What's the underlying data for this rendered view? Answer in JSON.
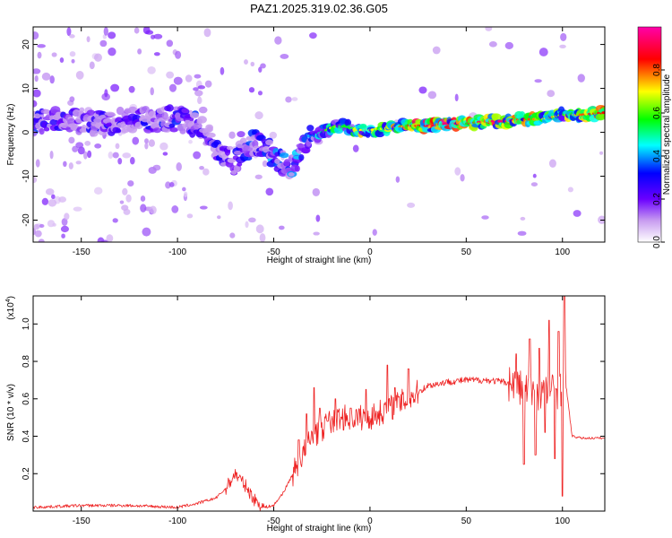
{
  "figure_title": "PAZ1.2025.319.02.36.G05",
  "chart_data": [
    {
      "type": "heatmap",
      "name": "spectrogram",
      "xlabel": "Height of straight line (km)",
      "ylabel": "Frequency (Hz)",
      "xlim": [
        -175,
        122
      ],
      "ylim": [
        -25,
        24
      ],
      "xticks": [
        -150,
        -100,
        -50,
        0,
        50,
        100
      ],
      "xtick_labels": [
        "-150",
        "-100",
        "-50",
        "0",
        "50",
        "100"
      ],
      "yticks": [
        -20,
        -10,
        0,
        10,
        20
      ],
      "ytick_labels": [
        "-20",
        "-10",
        "0",
        "10",
        "20"
      ],
      "colorbar": {
        "label": "Normalized spectral amplitude",
        "range": [
          0,
          1
        ],
        "ticks": [
          0.0,
          0.2,
          0.4,
          0.6,
          0.8
        ],
        "tick_labels": [
          "0.0",
          "0.2",
          "0.4",
          "0.6",
          "0.8"
        ],
        "colors": [
          "#ffffff",
          "#8a2be2",
          "#0000ff",
          "#00ffff",
          "#00ff00",
          "#ffff00",
          "#ff0000",
          "#ff00ff"
        ]
      },
      "ridge": {
        "x": [
          -175,
          -160,
          -140,
          -120,
          -100,
          -90,
          -85,
          -80,
          -75,
          -70,
          -65,
          -60,
          -55,
          -50,
          -45,
          -40,
          -35,
          -30,
          -25,
          -20,
          -15,
          -10,
          -5,
          0,
          10,
          20,
          30,
          40,
          50,
          60,
          70,
          80,
          90,
          95,
          100,
          110,
          122
        ],
        "freq": [
          2,
          3,
          2,
          3,
          3,
          2,
          0,
          -3,
          -5,
          -7,
          -4,
          -2,
          -4,
          -5,
          -7,
          -8,
          -3,
          -1,
          0,
          1,
          1.5,
          1,
          0.5,
          0.5,
          1,
          1.5,
          1.5,
          2,
          2,
          2.5,
          2.5,
          3,
          3,
          3.5,
          4,
          4,
          4.5
        ],
        "amplitude": [
          0.35,
          0.3,
          0.3,
          0.3,
          0.35,
          0.35,
          0.3,
          0.3,
          0.3,
          0.3,
          0.35,
          0.35,
          0.4,
          0.4,
          0.4,
          0.4,
          0.45,
          0.45,
          0.5,
          0.7,
          0.55,
          0.55,
          0.7,
          0.7,
          0.7,
          0.85,
          0.9,
          0.95,
          0.9,
          0.95,
          0.95,
          0.85,
          0.7,
          0.75,
          0.6,
          0.8,
          0.85
        ]
      }
    },
    {
      "type": "line",
      "name": "snr",
      "xlabel": "Height of straight line (km)",
      "ylabel": "SNR (10 * v/v)",
      "y_multiplier": "(x10",
      "y_multiplier_exp": "4",
      "y_multiplier_close": ")",
      "xlim": [
        -175,
        122
      ],
      "ylim": [
        0,
        1.15
      ],
      "xticks": [
        -150,
        -100,
        -50,
        0,
        50,
        100
      ],
      "xtick_labels": [
        "-150",
        "-100",
        "-50",
        "0",
        "50",
        "100"
      ],
      "yticks": [
        0.2,
        0.4,
        0.6,
        0.8,
        1.0
      ],
      "ytick_labels": [
        "0.2",
        "0.4",
        "0.6",
        "0.8",
        "1.0"
      ],
      "color": "#ee2222",
      "envelope": {
        "x": [
          -175,
          -150,
          -125,
          -100,
          -90,
          -80,
          -75,
          -70,
          -65,
          -60,
          -55,
          -50,
          -45,
          -40,
          -35,
          -30,
          -25,
          -20,
          -15,
          -10,
          -5,
          0,
          10,
          20,
          30,
          40,
          50,
          60,
          70,
          75,
          80,
          85,
          90,
          95,
          100,
          102,
          105,
          110,
          122
        ],
        "y": [
          0.02,
          0.03,
          0.03,
          0.02,
          0.04,
          0.07,
          0.12,
          0.2,
          0.14,
          0.06,
          0.02,
          0.03,
          0.1,
          0.2,
          0.3,
          0.4,
          0.44,
          0.48,
          0.5,
          0.5,
          0.5,
          0.5,
          0.55,
          0.6,
          0.67,
          0.69,
          0.7,
          0.7,
          0.69,
          0.68,
          0.65,
          0.64,
          0.64,
          0.64,
          0.65,
          0.66,
          0.4,
          0.39,
          0.39
        ]
      },
      "spikes": [
        {
          "x": -37,
          "y": 0.38
        },
        {
          "x": -33,
          "y": 0.52
        },
        {
          "x": -29,
          "y": 0.66
        },
        {
          "x": -26,
          "y": 0.55
        },
        {
          "x": -22,
          "y": 0.48
        },
        {
          "x": -18,
          "y": 0.6
        },
        {
          "x": -10,
          "y": 0.55
        },
        {
          "x": -2,
          "y": 0.65
        },
        {
          "x": 9,
          "y": 0.78
        },
        {
          "x": 13,
          "y": 0.66
        },
        {
          "x": 20,
          "y": 0.76
        },
        {
          "x": 76,
          "y": 0.84
        },
        {
          "x": 80,
          "y": 0.25
        },
        {
          "x": 83,
          "y": 0.92
        },
        {
          "x": 86,
          "y": 0.3
        },
        {
          "x": 88,
          "y": 0.87
        },
        {
          "x": 91,
          "y": 0.42
        },
        {
          "x": 93,
          "y": 1.02
        },
        {
          "x": 96,
          "y": 0.28
        },
        {
          "x": 98,
          "y": 0.96
        },
        {
          "x": 100,
          "y": 0.08
        },
        {
          "x": 101,
          "y": 1.15
        }
      ]
    }
  ]
}
